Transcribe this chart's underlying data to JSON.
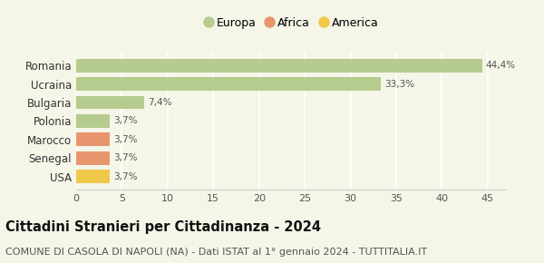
{
  "categories": [
    "Romania",
    "Ucraina",
    "Bulgaria",
    "Polonia",
    "Marocco",
    "Senegal",
    "USA"
  ],
  "values": [
    44.4,
    33.3,
    7.4,
    3.7,
    3.7,
    3.7,
    3.7
  ],
  "percentages": [
    "44,4%",
    "33,3%",
    "7,4%",
    "3,7%",
    "3,7%",
    "3,7%",
    "3,7%"
  ],
  "bar_colors": [
    "#b5cc8e",
    "#b5cc8e",
    "#b5cc8e",
    "#b5cc8e",
    "#e8956d",
    "#e8956d",
    "#f0c84a"
  ],
  "legend_items": [
    {
      "label": "Europa",
      "color": "#b5cc8e"
    },
    {
      "label": "Africa",
      "color": "#e8956d"
    },
    {
      "label": "America",
      "color": "#f0c84a"
    }
  ],
  "title": "Cittadini Stranieri per Cittadinanza - 2024",
  "subtitle": "COMUNE DI CASOLA DI NAPOLI (NA) - Dati ISTAT al 1° gennaio 2024 - TUTTITALIA.IT",
  "xlim": [
    0,
    47
  ],
  "xticks": [
    0,
    5,
    10,
    15,
    20,
    25,
    30,
    35,
    40,
    45
  ],
  "background_color": "#f5f5e8",
  "grid_color": "#ffffff",
  "title_fontsize": 10.5,
  "subtitle_fontsize": 8,
  "bar_height": 0.72
}
